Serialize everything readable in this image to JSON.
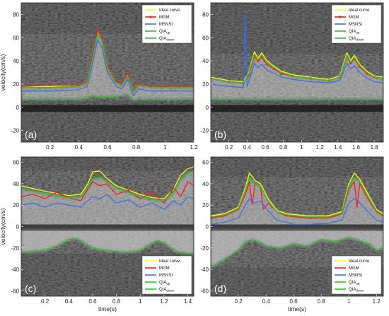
{
  "chart_data": [
    {
      "type": "line",
      "panel_label": "(a)",
      "xlabel": "",
      "ylabel": "velocity(cm/s)",
      "xlim": [
        0,
        1.2
      ],
      "ylim": [
        -30,
        90
      ],
      "xticks": [
        0.2,
        0.4,
        0.6,
        0.8,
        1,
        1.2
      ],
      "yticks": [
        -20,
        0,
        20,
        40,
        60,
        80
      ],
      "legend_position": "top-right",
      "series": [
        {
          "name": "Ideal curve",
          "color": "#ffff00",
          "x": [
            0,
            0.2,
            0.4,
            0.46,
            0.5,
            0.53,
            0.56,
            0.6,
            0.66,
            0.7,
            0.74,
            0.78,
            0.82,
            0.9,
            1.0,
            1.1,
            1.2
          ],
          "y": [
            18,
            18,
            19,
            22,
            46,
            65,
            60,
            34,
            22,
            20,
            28,
            14,
            20,
            18,
            18,
            18,
            18
          ]
        },
        {
          "name": "MGM",
          "color": "#ff1a1a",
          "marker": "circle",
          "x": [
            0,
            0.2,
            0.4,
            0.46,
            0.5,
            0.53,
            0.56,
            0.6,
            0.66,
            0.7,
            0.74,
            0.78,
            0.82,
            0.9,
            1.0,
            1.1,
            1.2
          ],
          "y": [
            18,
            19,
            19,
            22,
            48,
            66,
            60,
            35,
            22,
            20,
            29,
            14,
            20,
            18,
            18,
            18,
            18
          ]
        },
        {
          "name": "MSNSI",
          "color": "#3a6ee8",
          "x": [
            0,
            0.2,
            0.4,
            0.46,
            0.5,
            0.53,
            0.56,
            0.6,
            0.66,
            0.7,
            0.74,
            0.78,
            0.82,
            0.9,
            1.0,
            1.1,
            1.2
          ],
          "y": [
            14,
            14,
            15,
            18,
            40,
            58,
            52,
            30,
            18,
            16,
            24,
            10,
            16,
            14,
            14,
            14,
            14
          ]
        },
        {
          "name": "QIA_up",
          "color": "#22cc22",
          "x": [
            0,
            0.2,
            0.4,
            0.46,
            0.5,
            0.53,
            0.56,
            0.6,
            0.66,
            0.7,
            0.74,
            0.78,
            0.82,
            0.9,
            1.0,
            1.1,
            1.2
          ],
          "y": [
            17,
            17,
            18,
            21,
            45,
            63,
            58,
            33,
            21,
            19,
            27,
            13,
            19,
            17,
            17,
            17,
            17
          ]
        },
        {
          "name": "QIA_down",
          "color": "#22cc22",
          "x": [
            0,
            0.2,
            0.4,
            0.46,
            0.5,
            0.53,
            0.56,
            0.6,
            0.66,
            0.7,
            0.74,
            0.78,
            0.82,
            0.9,
            1.0,
            1.1,
            1.2
          ],
          "y": [
            7,
            7,
            7,
            8,
            10,
            9,
            9,
            9,
            9,
            10,
            11,
            6,
            7,
            7,
            7,
            7,
            7
          ]
        }
      ]
    },
    {
      "type": "line",
      "panel_label": "(b)",
      "xlabel": "",
      "ylabel": "",
      "xlim": [
        0,
        1.9
      ],
      "ylim": [
        -30,
        90
      ],
      "xticks": [
        0.2,
        0.4,
        0.6,
        0.8,
        1,
        1.2,
        1.4,
        1.6,
        1.8
      ],
      "yticks": [
        -20,
        0,
        20,
        40,
        60,
        80
      ],
      "legend_position": "top-right",
      "series": [
        {
          "name": "Ideal curve",
          "color": "#ffff00",
          "x": [
            0,
            0.2,
            0.36,
            0.42,
            0.48,
            0.52,
            0.56,
            0.62,
            0.7,
            0.78,
            0.9,
            1.1,
            1.3,
            1.42,
            1.5,
            1.54,
            1.58,
            1.64,
            1.72,
            1.8,
            1.9
          ],
          "y": [
            26,
            23,
            22,
            30,
            48,
            42,
            47,
            40,
            35,
            31,
            28,
            26,
            24,
            27,
            47,
            40,
            45,
            37,
            31,
            27,
            26
          ]
        },
        {
          "name": "MGM",
          "color": "#ff1a1a",
          "marker": "circle",
          "x": [
            0,
            0.2,
            0.36,
            0.42,
            0.48,
            0.52,
            0.56,
            0.62,
            0.7,
            0.78,
            0.9,
            1.1,
            1.3,
            1.42,
            1.5,
            1.54,
            1.58,
            1.64,
            1.72,
            1.8,
            1.9
          ],
          "y": [
            25,
            22,
            21,
            28,
            44,
            40,
            43,
            37,
            33,
            29,
            27,
            25,
            23,
            26,
            44,
            38,
            42,
            35,
            29,
            26,
            25
          ]
        },
        {
          "name": "MSNSI",
          "color": "#3a6ee8",
          "x": [
            0,
            0.2,
            0.36,
            0.37,
            0.38,
            0.39,
            0.4,
            0.42,
            0.48,
            0.52,
            0.56,
            0.62,
            0.7,
            0.78,
            0.9,
            1.1,
            1.3,
            1.42,
            1.5,
            1.54,
            1.58,
            1.64,
            1.72,
            1.8,
            1.9
          ],
          "y": [
            20,
            18,
            17,
            45,
            80,
            45,
            18,
            22,
            38,
            34,
            37,
            32,
            29,
            26,
            24,
            22,
            21,
            23,
            38,
            33,
            36,
            30,
            25,
            22,
            21
          ]
        },
        {
          "name": "QIA_up",
          "color": "#22cc22",
          "x": [
            0,
            0.2,
            0.36,
            0.42,
            0.48,
            0.52,
            0.56,
            0.62,
            0.7,
            0.78,
            0.9,
            1.1,
            1.3,
            1.42,
            1.5,
            1.54,
            1.58,
            1.64,
            1.72,
            1.8,
            1.9
          ],
          "y": [
            25,
            22,
            21,
            29,
            46,
            41,
            45,
            38,
            34,
            30,
            27,
            25,
            23,
            26,
            45,
            39,
            43,
            36,
            30,
            26,
            25
          ]
        },
        {
          "name": "QIA_down",
          "color": "#22cc22",
          "x": [
            0,
            0.3,
            0.6,
            0.9,
            1.2,
            1.5,
            1.9
          ],
          "y": [
            7,
            7,
            7,
            7,
            7,
            7,
            7
          ]
        }
      ]
    },
    {
      "type": "line",
      "panel_label": "(c)",
      "xlabel": "time(s)",
      "ylabel": "velocity(cm/s)",
      "xlim": [
        0,
        1.45
      ],
      "ylim": [
        -65,
        65
      ],
      "xticks": [
        0.2,
        0.4,
        0.6,
        0.8,
        1,
        1.2,
        1.4
      ],
      "yticks": [
        -60,
        -40,
        -20,
        0,
        20,
        40,
        60
      ],
      "legend_position": "bottom-right",
      "series": [
        {
          "name": "Ideal curve",
          "color": "#ffff00",
          "x": [
            0,
            0.2,
            0.4,
            0.5,
            0.56,
            0.6,
            0.66,
            0.72,
            0.8,
            0.9,
            1.0,
            1.1,
            1.2,
            1.28,
            1.34,
            1.4,
            1.45
          ],
          "y": [
            38,
            33,
            29,
            30,
            40,
            51,
            52,
            45,
            38,
            34,
            30,
            27,
            26,
            35,
            48,
            54,
            56
          ]
        },
        {
          "name": "MGM",
          "color": "#ff1a1a",
          "x": [
            0,
            0.1,
            0.2,
            0.3,
            0.4,
            0.5,
            0.56,
            0.6,
            0.66,
            0.72,
            0.8,
            0.9,
            1.0,
            1.1,
            1.2,
            1.28,
            1.34,
            1.4,
            1.45
          ],
          "y": [
            28,
            30,
            26,
            32,
            27,
            24,
            35,
            42,
            38,
            40,
            30,
            34,
            26,
            32,
            22,
            36,
            28,
            42,
            38
          ]
        },
        {
          "name": "MSNSI",
          "color": "#3a6ee8",
          "x": [
            0,
            0.1,
            0.2,
            0.3,
            0.4,
            0.5,
            0.56,
            0.6,
            0.66,
            0.72,
            0.8,
            0.9,
            1.0,
            1.1,
            1.2,
            1.28,
            1.34,
            1.4,
            1.45
          ],
          "y": [
            20,
            22,
            18,
            22,
            20,
            18,
            24,
            28,
            26,
            30,
            22,
            25,
            18,
            22,
            16,
            24,
            20,
            28,
            26
          ]
        },
        {
          "name": "QIA_up",
          "color": "#22cc22",
          "x": [
            0,
            0.2,
            0.4,
            0.5,
            0.56,
            0.6,
            0.66,
            0.72,
            0.8,
            0.9,
            1.0,
            1.1,
            1.2,
            1.28,
            1.34,
            1.4,
            1.45
          ],
          "y": [
            35,
            31,
            27,
            28,
            37,
            44,
            46,
            42,
            36,
            32,
            28,
            25,
            24,
            32,
            44,
            50,
            52
          ]
        },
        {
          "name": "QIA_down",
          "color": "#22cc22",
          "x": [
            0,
            0.1,
            0.2,
            0.3,
            0.4,
            0.45,
            0.5,
            0.6,
            0.7,
            0.8,
            0.9,
            1.0,
            1.1,
            1.15,
            1.2,
            1.3,
            1.4,
            1.45
          ],
          "y": [
            -24,
            -23,
            -22,
            -18,
            -12,
            -11,
            -13,
            -20,
            -22,
            -23,
            -24,
            -22,
            -15,
            -13,
            -15,
            -23,
            -25,
            -25
          ]
        }
      ]
    },
    {
      "type": "line",
      "panel_label": "(d)",
      "xlabel": "time(s)",
      "ylabel": "",
      "xlim": [
        0,
        1.25
      ],
      "ylim": [
        -65,
        65
      ],
      "xticks": [
        0.2,
        0.4,
        0.6,
        0.8,
        1,
        1.2
      ],
      "yticks": [
        -60,
        -40,
        -20,
        0,
        20,
        40,
        60
      ],
      "legend_position": "bottom-right",
      "series": [
        {
          "name": "Ideal curve",
          "color": "#ffff00",
          "x": [
            0,
            0.1,
            0.2,
            0.25,
            0.28,
            0.32,
            0.36,
            0.42,
            0.48,
            0.55,
            0.7,
            0.85,
            0.95,
            1.0,
            1.04,
            1.08,
            1.14,
            1.2,
            1.25
          ],
          "y": [
            10,
            12,
            18,
            36,
            50,
            43,
            40,
            25,
            15,
            12,
            10,
            10,
            14,
            40,
            50,
            44,
            30,
            16,
            12
          ]
        },
        {
          "name": "MGM",
          "color": "#ff1a1a",
          "x": [
            0,
            0.1,
            0.2,
            0.25,
            0.28,
            0.3,
            0.32,
            0.36,
            0.38,
            0.42,
            0.48,
            0.55,
            0.7,
            0.85,
            0.95,
            1.0,
            1.04,
            1.06,
            1.08,
            1.14,
            1.2,
            1.25
          ],
          "y": [
            8,
            10,
            16,
            30,
            42,
            20,
            40,
            38,
            16,
            22,
            14,
            10,
            8,
            8,
            12,
            35,
            42,
            18,
            40,
            26,
            14,
            10
          ]
        },
        {
          "name": "MSNSI",
          "color": "#3a6ee8",
          "x": [
            0,
            0.1,
            0.2,
            0.25,
            0.28,
            0.32,
            0.36,
            0.42,
            0.48,
            0.55,
            0.6,
            0.7,
            0.85,
            0.95,
            1.0,
            1.04,
            1.08,
            1.14,
            1.2,
            1.25
          ],
          "y": [
            2,
            4,
            8,
            20,
            26,
            22,
            24,
            14,
            6,
            4,
            2,
            2,
            3,
            6,
            22,
            26,
            22,
            14,
            6,
            4
          ]
        },
        {
          "name": "QIA_up",
          "color": "#22cc22",
          "x": [
            0,
            0.1,
            0.2,
            0.25,
            0.28,
            0.32,
            0.36,
            0.42,
            0.48,
            0.55,
            0.7,
            0.85,
            0.95,
            1.0,
            1.04,
            1.08,
            1.14,
            1.2,
            1.25
          ],
          "y": [
            9,
            11,
            17,
            34,
            46,
            40,
            38,
            23,
            14,
            11,
            9,
            9,
            13,
            38,
            46,
            42,
            28,
            15,
            11
          ]
        },
        {
          "name": "QIA_down",
          "color": "#22cc22",
          "x": [
            0,
            0.1,
            0.2,
            0.25,
            0.3,
            0.35,
            0.4,
            0.5,
            0.6,
            0.7,
            0.8,
            0.9,
            1.0,
            1.05,
            1.1,
            1.15,
            1.2,
            1.25
          ],
          "y": [
            -38,
            -30,
            -22,
            -14,
            -12,
            -14,
            -18,
            -20,
            -16,
            -18,
            -12,
            -14,
            -10,
            -12,
            -14,
            -16,
            -22,
            -20
          ]
        }
      ]
    }
  ]
}
